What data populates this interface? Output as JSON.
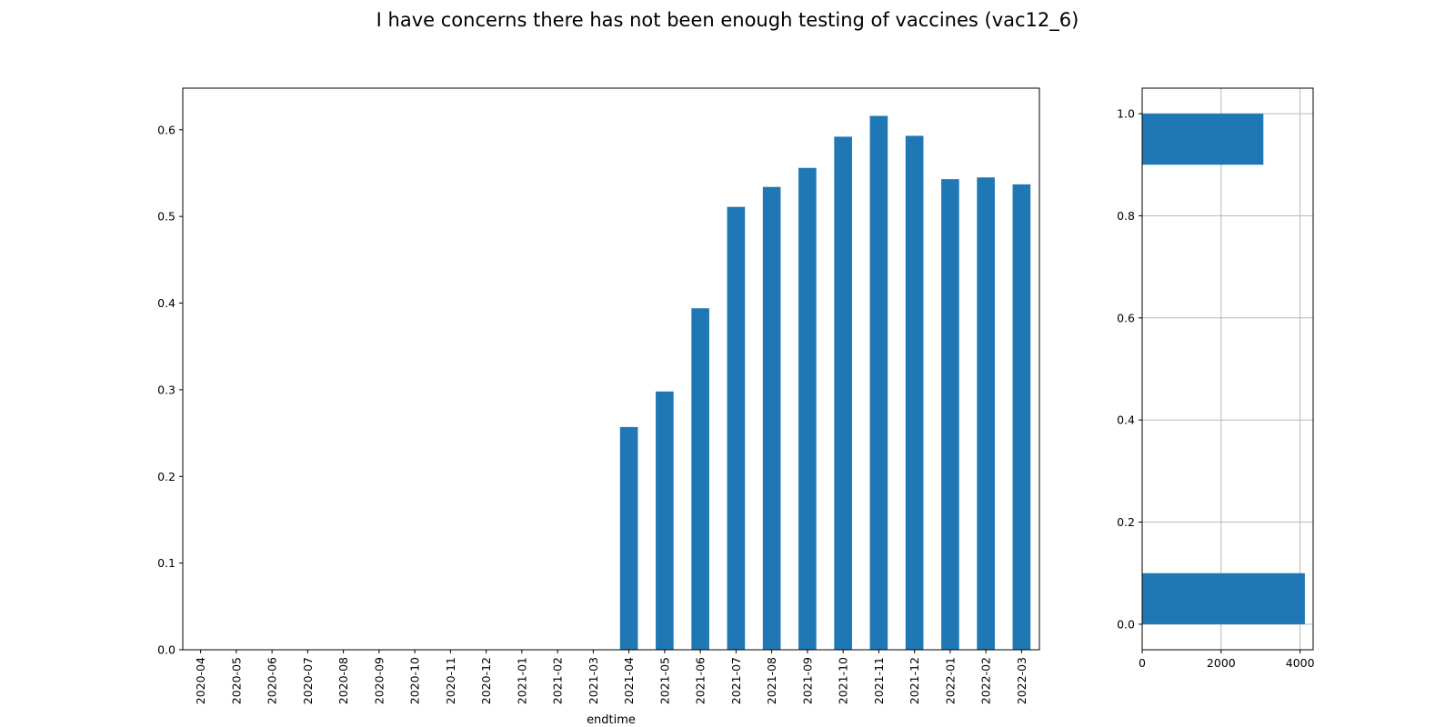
{
  "chart_data": [
    {
      "type": "bar",
      "title": "I have concerns there has not been enough testing of vaccines (vac12_6)",
      "xlabel": "endtime",
      "ylabel": "",
      "categories": [
        "2020-04",
        "2020-05",
        "2020-06",
        "2020-07",
        "2020-08",
        "2020-09",
        "2020-10",
        "2020-11",
        "2020-12",
        "2021-01",
        "2021-02",
        "2021-03",
        "2021-04",
        "2021-05",
        "2021-06",
        "2021-07",
        "2021-08",
        "2021-09",
        "2021-10",
        "2021-11",
        "2021-12",
        "2022-01",
        "2022-02",
        "2022-03"
      ],
      "values": [
        0,
        0,
        0,
        0,
        0,
        0,
        0,
        0,
        0,
        0,
        0,
        0,
        0.257,
        0.298,
        0.394,
        0.511,
        0.534,
        0.556,
        0.592,
        0.616,
        0.593,
        0.543,
        0.545,
        0.537
      ],
      "ylim": [
        0,
        0.648
      ],
      "yticks": [
        0.0,
        0.1,
        0.2,
        0.3,
        0.4,
        0.5,
        0.6
      ],
      "ytick_labels": [
        "0.0",
        "0.1",
        "0.2",
        "0.3",
        "0.4",
        "0.5",
        "0.6"
      ],
      "color": "#1f77b4",
      "grid": false
    },
    {
      "type": "bar",
      "orientation": "horizontal",
      "title": "",
      "xlabel": "",
      "ylabel": "",
      "categories": [
        0.0,
        1.0
      ],
      "values": [
        4120,
        3070
      ],
      "xlim": [
        0,
        4330
      ],
      "ylim": [
        -0.05,
        1.05
      ],
      "xticks": [
        0,
        2000,
        4000
      ],
      "xtick_labels": [
        "0",
        "2000",
        "4000"
      ],
      "yticks": [
        0.0,
        0.2,
        0.4,
        0.6,
        0.8,
        1.0
      ],
      "ytick_labels": [
        "0.0",
        "0.2",
        "0.4",
        "0.6",
        "0.8",
        "1.0"
      ],
      "color": "#1f77b4",
      "grid": true
    }
  ]
}
